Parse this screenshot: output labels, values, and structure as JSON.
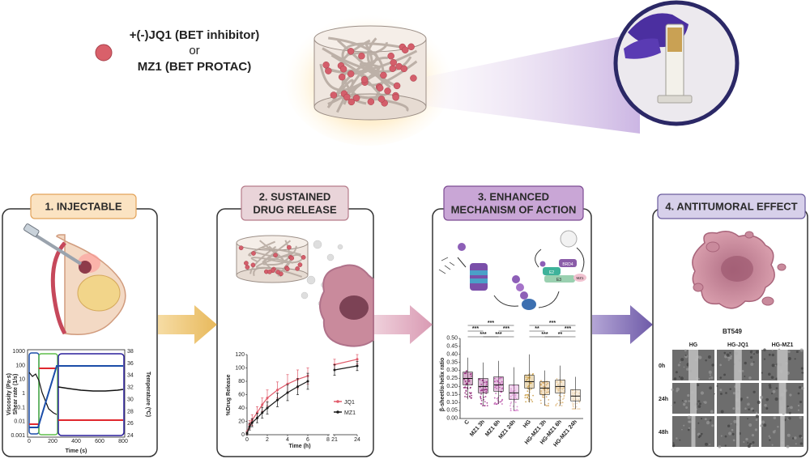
{
  "legend": {
    "line1": "+(-)JQ1 (BET inhibitor)",
    "line2": "or",
    "line3": "MZ1 (BET PROTAC)"
  },
  "panels": [
    {
      "title_lines": [
        "1.  INJECTABLE"
      ],
      "header_color": "#fbe3c2",
      "header_border": "#e3a35a"
    },
    {
      "title_lines": [
        "2. SUSTAINED",
        "DRUG RELEASE"
      ],
      "header_color": "#e9d4d9",
      "header_border": "#b67c8a"
    },
    {
      "title_lines": [
        "3. ENHANCED",
        "MECHANISM OF ACTION"
      ],
      "header_color": "#c9a6d6",
      "header_border": "#7d4c93"
    },
    {
      "title_lines": [
        "4. ANTITUMORAL EFFECT"
      ],
      "header_color": "#d7d0ea",
      "header_border": "#6b5c9e"
    }
  ],
  "rheology": {
    "ylabel_left_1": "Viscosity (Pa·s)",
    "ylabel_left_2": "Shear rate (1/s)",
    "ylabel_right": "Temperature (ºC)",
    "xlabel": "Time (s)",
    "xticks": [
      "0",
      "200",
      "400",
      "600",
      "800"
    ],
    "yticks_left": [
      "1000",
      "100",
      "10",
      "1",
      "0.1",
      "0.01",
      "0.001"
    ],
    "yticks_right": [
      "38",
      "36",
      "34",
      "32",
      "30",
      "28",
      "26",
      "24"
    ]
  },
  "release_chart": {
    "chart_data": {
      "type": "line",
      "xlabel": "Time (h)",
      "ylabel": "%Drug Release",
      "ylim": [
        0,
        120
      ],
      "yticks": [
        0,
        20,
        40,
        60,
        80,
        100,
        120
      ],
      "xticks": [
        "0",
        "2",
        "4",
        "6",
        "8",
        "21",
        "24"
      ],
      "legend_position": "bottom-right",
      "series": [
        {
          "name": "JQ1",
          "color": "#e05a6a",
          "x": [
            0,
            0.25,
            0.5,
            1,
            1.5,
            2,
            3,
            4,
            5,
            6,
            21,
            24
          ],
          "y": [
            3,
            15,
            22,
            33,
            45,
            55,
            67,
            76,
            83,
            88,
            105,
            113
          ],
          "err": [
            3,
            6,
            8,
            9,
            10,
            12,
            12,
            14,
            14,
            12,
            8,
            7
          ]
        },
        {
          "name": "MZ1",
          "color": "#1a1a1a",
          "x": [
            0,
            0.25,
            0.5,
            1,
            1.5,
            2,
            3,
            4,
            5,
            6,
            21,
            24
          ],
          "y": [
            2,
            12,
            18,
            25,
            33,
            40,
            52,
            63,
            72,
            80,
            97,
            103
          ],
          "err": [
            2,
            5,
            6,
            7,
            8,
            9,
            10,
            12,
            12,
            12,
            8,
            7
          ]
        }
      ]
    }
  },
  "box_chart": {
    "chart_data": {
      "type": "box",
      "ylabel": "β-sheet/α-helix ratio",
      "ylim": [
        0,
        0.5
      ],
      "yticks": [
        "0.00",
        "0.05",
        "0.10",
        "0.15",
        "0.20",
        "0.25",
        "0.30",
        "0.35",
        "0.40",
        "0.45",
        "0.50"
      ],
      "categories": [
        "C",
        "MZ1 3h",
        "MZ1 6h",
        "MZ1 24h",
        "HG",
        "HG-MZ1 3h",
        "HG-MZ1 6h",
        "HG-MZ1 24h"
      ],
      "colors": [
        "#8a1a6e",
        "#9b2a86",
        "#b84fa8",
        "#d98ad0",
        "#c99a3c",
        "#d9a861",
        "#e3bd84",
        "#efd3ad"
      ],
      "median": [
        0.25,
        0.2,
        0.21,
        0.16,
        0.23,
        0.19,
        0.2,
        0.14
      ],
      "q1": [
        0.21,
        0.16,
        0.17,
        0.12,
        0.19,
        0.15,
        0.16,
        0.11
      ],
      "q3": [
        0.29,
        0.25,
        0.26,
        0.21,
        0.27,
        0.23,
        0.24,
        0.18
      ],
      "min": [
        0.12,
        0.08,
        0.09,
        0.05,
        0.1,
        0.08,
        0.08,
        0.06
      ],
      "max": [
        0.38,
        0.35,
        0.36,
        0.32,
        0.4,
        0.3,
        0.33,
        0.26
      ],
      "significance_label": "***",
      "significance_label_2": "**"
    }
  },
  "moa": {
    "brd4": "BRD4",
    "e3": "E3",
    "e2": "E2",
    "mz1": "MZ1"
  },
  "antitumoral": {
    "cell_line": "BT549",
    "columns": [
      "HG",
      "HG-JQ1",
      "HG-MZ1"
    ],
    "rows": [
      "0h",
      "24h",
      "48h"
    ]
  }
}
